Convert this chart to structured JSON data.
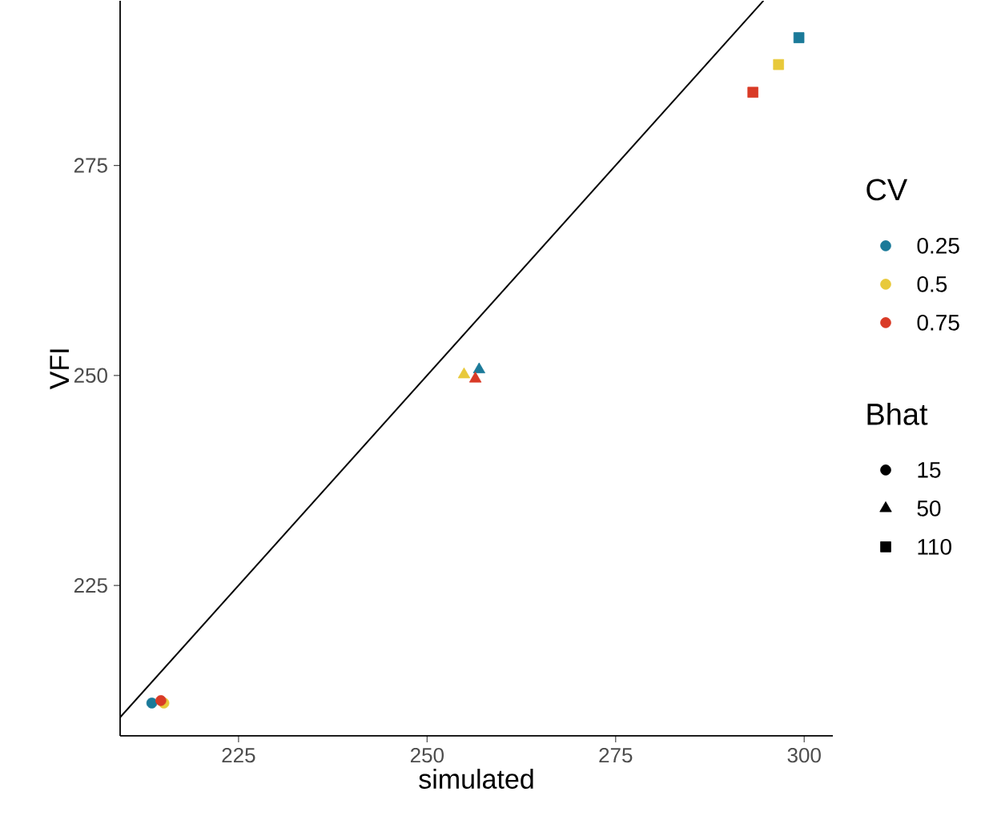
{
  "chart_data": {
    "type": "scatter",
    "xlabel": "simulated",
    "ylabel": "VFI",
    "legend_title": "CV",
    "legend": "right",
    "grid": false,
    "xlim": [
      209.3,
      303.8
    ],
    "ylim": [
      207.1,
      294.6
    ],
    "xticks": [
      225,
      250,
      275,
      300
    ],
    "yticks": [
      225,
      250,
      275
    ],
    "annotations": [
      "Bhat"
    ],
    "series": [
      {
        "name": "0.25",
        "color": "#1b7a99",
        "x": [
          213.5,
          256.9,
          299.3
        ],
        "values": [
          211.0,
          250.7,
          290.2
        ],
        "marker": [
          "circle",
          "triangle",
          "square"
        ]
      },
      {
        "name": "0.5",
        "color": "#e8c93a",
        "x": [
          215.1,
          254.9,
          296.6
        ],
        "values": [
          211.0,
          250.1,
          287.0
        ],
        "marker": [
          "circle",
          "triangle",
          "square"
        ]
      },
      {
        "name": "0.75",
        "color": "#d93a26",
        "x": [
          214.7,
          256.4,
          293.2
        ],
        "values": [
          211.3,
          249.6,
          283.7
        ],
        "marker": [
          "circle",
          "triangle",
          "square"
        ]
      },
      {
        "name": "15",
        "color": "#000000",
        "marker": "circle"
      },
      {
        "name": "50",
        "color": "#000000",
        "marker": "triangle"
      },
      {
        "name": "110",
        "color": "#000000",
        "marker": "square"
      },
      {
        "type": "line",
        "color": "#000000",
        "line_style": "solid",
        "x": [
          209.3,
          294.6
        ],
        "values": [
          209.3,
          294.6
        ],
        "marker": "none"
      }
    ]
  }
}
